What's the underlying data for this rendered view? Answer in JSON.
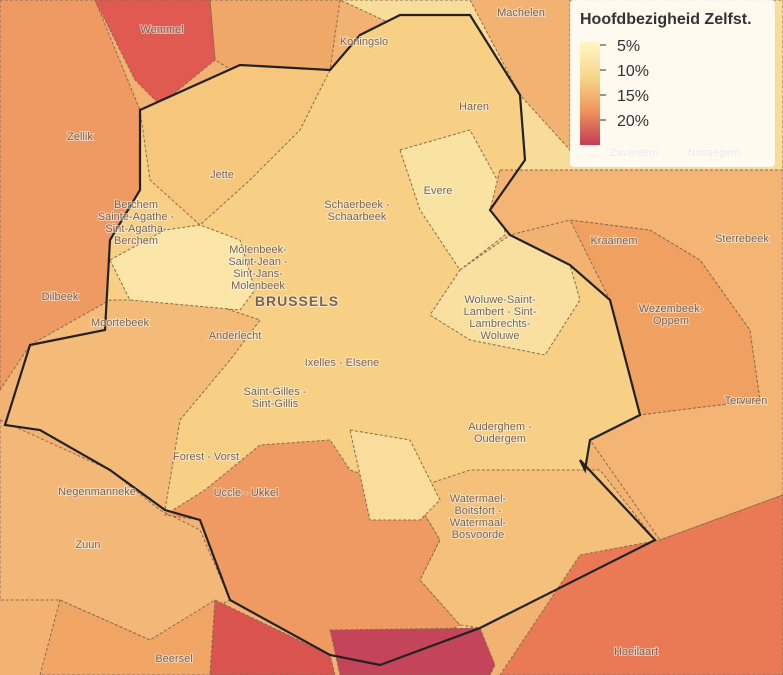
{
  "legend": {
    "title": "Hoofdbezigheid Zelfst.",
    "ticks": [
      {
        "value": 5,
        "label": "5%"
      },
      {
        "value": 10,
        "label": "10%"
      },
      {
        "value": 15,
        "label": "15%"
      },
      {
        "value": 20,
        "label": "20%"
      }
    ]
  },
  "labels": [
    {
      "lines": [
        "Wemmel"
      ]
    },
    {
      "lines": [
        "Machelen"
      ]
    },
    {
      "lines": [
        "Koningslo"
      ]
    },
    {
      "lines": [
        "Haren"
      ]
    },
    {
      "lines": [
        "Zellik"
      ]
    },
    {
      "lines": [
        "Jette"
      ]
    },
    {
      "lines": [
        "Evere"
      ]
    },
    {
      "lines": [
        "Schaerbeek -",
        "Schaarbeek"
      ]
    },
    {
      "lines": [
        "Berchem",
        "Sainte-Agathe -",
        "Sint-Agatha-",
        "Berchem"
      ]
    },
    {
      "lines": [
        "Kraainem"
      ]
    },
    {
      "lines": [
        "Sterrebeek"
      ]
    },
    {
      "lines": [
        "Dilbeek"
      ]
    },
    {
      "lines": [
        "Molenbeek-",
        "Saint-Jean -",
        "Sint-Jans-",
        "Molenbeek"
      ]
    },
    {
      "lines": [
        "BRUSSELS"
      ]
    },
    {
      "lines": [
        "Woluwe-Saint-",
        "Lambert - Sint-",
        "Lambrechts-",
        "Woluwe"
      ]
    },
    {
      "lines": [
        "Wezembeek-",
        "Oppem"
      ]
    },
    {
      "lines": [
        "Moortebeek"
      ]
    },
    {
      "lines": [
        "Anderlecht"
      ]
    },
    {
      "lines": [
        "Ixelles - Elsene"
      ]
    },
    {
      "lines": [
        "Saint-Gilles -",
        "Sint-Gillis"
      ]
    },
    {
      "lines": [
        "Auderghem -",
        "Oudergem"
      ]
    },
    {
      "lines": [
        "Tervuren"
      ]
    },
    {
      "lines": [
        "Forest - Vorst"
      ]
    },
    {
      "lines": [
        "Uccle - Ukkel"
      ]
    },
    {
      "lines": [
        "Negenmanneke"
      ]
    },
    {
      "lines": [
        "Watermael-",
        "Boitsfort -",
        "Watermaal-",
        "Bosvoorde"
      ]
    },
    {
      "lines": [
        "Zuun"
      ]
    },
    {
      "lines": [
        "Beersel"
      ]
    },
    {
      "lines": [
        "Hoeilaart"
      ]
    },
    {
      "lines": [
        "Zaventem"
      ]
    },
    {
      "lines": [
        "Nossegem"
      ]
    }
  ]
}
